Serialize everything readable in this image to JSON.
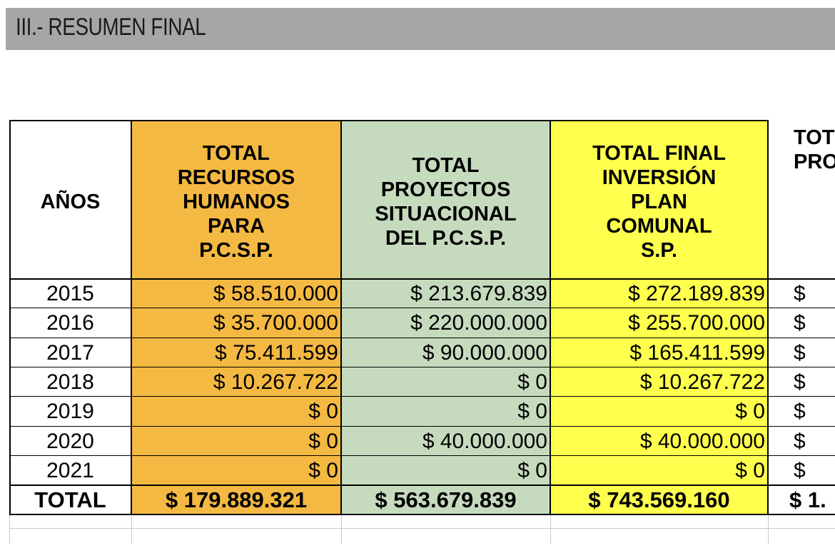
{
  "section": {
    "title": "III.-  RESUMEN FINAL"
  },
  "table": {
    "headers": {
      "anos": [
        "AÑOS"
      ],
      "rrhh": [
        "TOTAL",
        "RECURSOS",
        "HUMANOS",
        "PARA",
        "P.C.S.P."
      ],
      "proyectos": [
        "TOTAL",
        "PROYECTOS",
        "SITUACIONAL",
        "DEL P.C.S.P."
      ],
      "final": [
        "TOTAL FINAL",
        "INVERSIÓN",
        "PLAN",
        "COMUNAL",
        "S.P."
      ],
      "partial": [
        "TOT",
        "PRO"
      ]
    },
    "rows": [
      {
        "year": "2015",
        "rrhh": "$ 58.510.000",
        "proyectos": "$ 213.679.839",
        "final": "$ 272.189.839",
        "partial": "$"
      },
      {
        "year": "2016",
        "rrhh": "$ 35.700.000",
        "proyectos": "$ 220.000.000",
        "final": "$ 255.700.000",
        "partial": "$"
      },
      {
        "year": "2017",
        "rrhh": "$ 75.411.599",
        "proyectos": "$ 90.000.000",
        "final": "$ 165.411.599",
        "partial": "$"
      },
      {
        "year": "2018",
        "rrhh": "$ 10.267.722",
        "proyectos": "$ 0",
        "final": "$ 10.267.722",
        "partial": "$"
      },
      {
        "year": "2019",
        "rrhh": "$ 0",
        "proyectos": "$ 0",
        "final": "$ 0",
        "partial": "$"
      },
      {
        "year": "2020",
        "rrhh": "$ 0",
        "proyectos": "$ 40.000.000",
        "final": "$ 40.000.000",
        "partial": "$"
      },
      {
        "year": "2021",
        "rrhh": "$ 0",
        "proyectos": "$ 0",
        "final": "$ 0",
        "partial": "$"
      }
    ],
    "total": {
      "label": "TOTAL",
      "rrhh": "$ 179.889.321",
      "proyectos": "$ 563.679.839",
      "final": "$ 743.569.160",
      "partial": "$ 1."
    },
    "colors": {
      "rrhh": "#f4b942",
      "proyectos": "#c6dbbe",
      "final": "#ffff4d"
    }
  }
}
